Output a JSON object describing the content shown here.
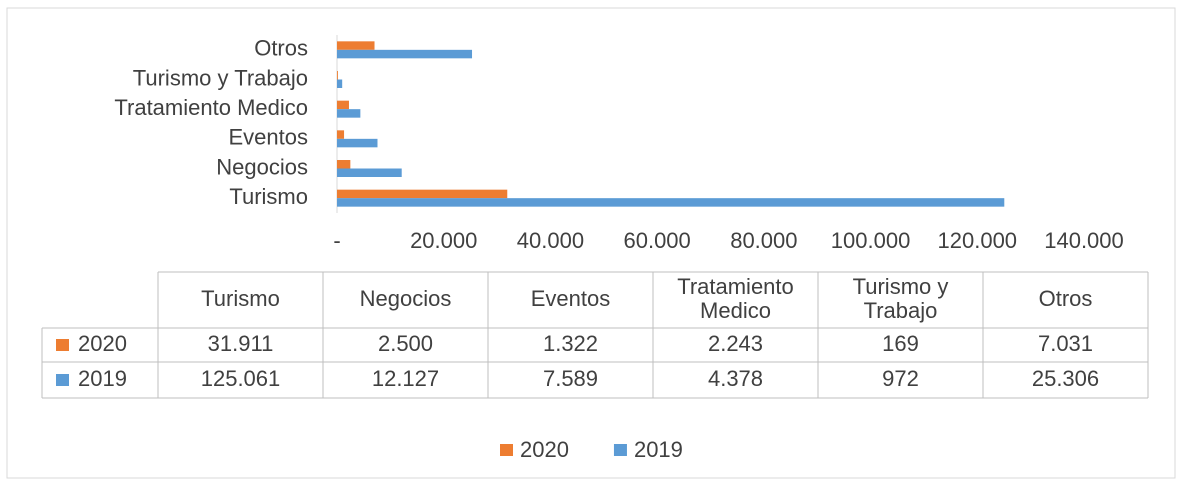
{
  "chart_data": {
    "type": "bar",
    "orientation": "horizontal",
    "categories": [
      "Turismo",
      "Negocios",
      "Eventos",
      "Tratamiento Medico",
      "Turismo y Trabajo",
      "Otros"
    ],
    "series": [
      {
        "name": "2020",
        "color": "#ed7d31",
        "values": [
          31911,
          2500,
          1322,
          2243,
          169,
          7031
        ],
        "value_labels": [
          "31.911",
          "2.500",
          "1.322",
          "2.243",
          "169",
          "7.031"
        ]
      },
      {
        "name": "2019",
        "color": "#5b9bd5",
        "values": [
          125061,
          12127,
          7589,
          4378,
          972,
          25306
        ],
        "value_labels": [
          "125.061",
          "12.127",
          "7.589",
          "4.378",
          "972",
          "25.306"
        ]
      }
    ],
    "xlim": [
      0,
      140000
    ],
    "xticks": [
      {
        "value": 0,
        "label": "-"
      },
      {
        "value": 20000,
        "label": "20.000"
      },
      {
        "value": 40000,
        "label": "40.000"
      },
      {
        "value": 60000,
        "label": "60.000"
      },
      {
        "value": 80000,
        "label": "80.000"
      },
      {
        "value": 100000,
        "label": "100.000"
      },
      {
        "value": 120000,
        "label": "120.000"
      },
      {
        "value": 140000,
        "label": "140.000"
      }
    ],
    "legend": "bottom"
  }
}
